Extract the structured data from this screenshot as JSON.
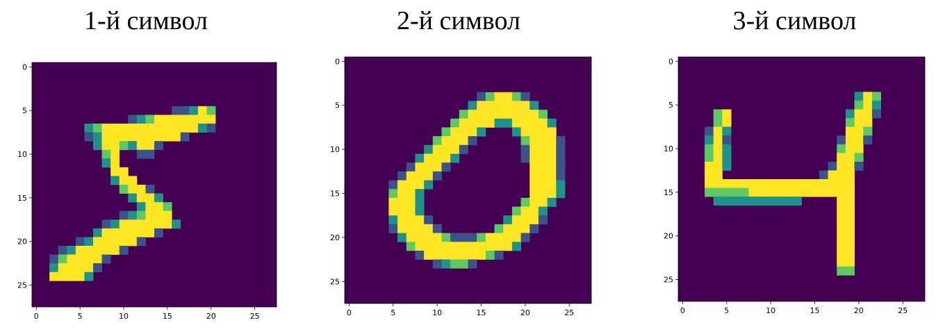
{
  "colors": {
    "background": "#440154",
    "low": "#3b528b",
    "mid": "#21918c",
    "high": "#5ec962",
    "max": "#fde725"
  },
  "chart_data": [
    {
      "type": "heatmap",
      "title": "1-й символ",
      "xlim": [
        0,
        27
      ],
      "ylim": [
        0,
        27
      ],
      "xticks": [
        "0",
        "5",
        "10",
        "15",
        "20",
        "25"
      ],
      "yticks": [
        "0",
        "5",
        "10",
        "15",
        "20",
        "25"
      ],
      "grid": false,
      "rows": [
        "............................",
        "............................",
        "............................",
        "............................",
        "............................",
        "................aabdc.......",
        "...........abcddddddd.......",
        "......bcdddddddddddba.......",
        "......abddddddddda..........",
        ".......bddcbdda.............",
        "........cd..aa..............",
        "........bd..................",
        ".........dd.................",
        ".........bdd................",
        "..........cdda..............",
        "...........bddb.............",
        "............bddc............",
        "..........abcddd............",
        "........abddddddb...........",
        ".......bdddddda.............",
        ".....abddddda...............",
        "...abddddda.................",
        "..acdddda...................",
        "..bdddda....................",
        "..ddddb.....................",
        "............................",
        "............................",
        "............................"
      ]
    },
    {
      "type": "heatmap",
      "title": "2-й символ",
      "xlim": [
        0,
        27
      ],
      "ylim": [
        0,
        27
      ],
      "xticks": [
        "0",
        "5",
        "10",
        "15",
        "20",
        "25"
      ],
      "yticks": [
        "0",
        "5",
        "10",
        "15",
        "20",
        "25"
      ],
      "grid": false,
      "rows": [
        "............................",
        "............................",
        "............................",
        "............................",
        "...............acddca.......",
        "..............bddddddb......",
        ".............cddddddddc.....",
        "............cddddbbddddb....",
        "...........cdddb...bdddd....",
        "..........cddda.....cddda...",
        ".........bddda......addda...",
        "........bdddb.......addda...",
        ".......addda.........ddda...",
        "......addda..........ddda...",
        ".....adddb...........dddb...",
        ".....cddb............dddb...",
        ".....dddb...........cddb....",
        ".....dddb..........cddb.....",
        ".....bddda........bddda.....",
        ".....adddda......cddda......",
        "......bddddcaaacdddda.......",
        ".......cdddddddddddb........",
        "........adddddddca..........",
        "..........abcca.............",
        "............................",
        "............................",
        "............................",
        "............................"
      ]
    },
    {
      "type": "heatmap",
      "title": "3-й символ",
      "xlim": [
        0,
        27
      ],
      "ylim": [
        0,
        27
      ],
      "xticks": [
        "0",
        "5",
        "10",
        "15",
        "20",
        "25"
      ],
      "yticks": [
        "0",
        "5",
        "10",
        "15",
        "20",
        "25"
      ],
      "grid": false,
      "rows": [
        "............................",
        "............................",
        "............................",
        "............................",
        "....................bdc.....",
        "....................cdb.....",
        "....cd.............bdda.....",
        "....cd.............cdd......",
        "...adb.............ddc......",
        "...bda............adda......",
        "...cdb............cdd.......",
        "...cdb............ddc.......",
        "...ddb...........adda.......",
        "...dd...........addd........",
        "...ddddddddddddddddd........",
        "...cccccdddddddddddd........",
        "....bbbbbbbbbb....dd........",
        "..................dd........",
        "..................dd........",
        "..................dd........",
        "..................dd........",
        "..................dd........",
        "..................dd........",
        "..................dd........",
        "..................cc........",
        "............................",
        "............................",
        "............................"
      ]
    }
  ]
}
